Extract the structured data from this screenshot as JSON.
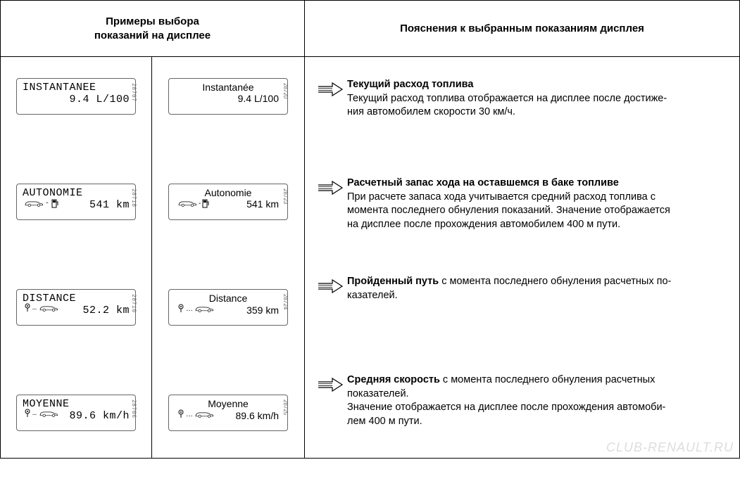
{
  "header": {
    "left": "Примеры выбора\nпоказаний на дисплее",
    "right": "Пояснения к выбранным показаниям дисплея"
  },
  "rows": [
    {
      "lcd": {
        "line1": "INSTANTANEE",
        "line2": "9.4 L/100",
        "ref": "28707",
        "icon": "none"
      },
      "mat": {
        "line1": "Instantanée",
        "line2": "9.4 L/100",
        "ref": "28720",
        "icon": "none"
      },
      "title": "Текущий расход топлива",
      "body": "Текущий расход топлива отображается на дисплее после достиже-\nния автомобилем скорости 30 км/ч."
    },
    {
      "lcd": {
        "line1": "AUTONOMIE",
        "line2": "541 km",
        "ref": "28718",
        "icon": "car-fuel"
      },
      "mat": {
        "line1": "Autonomie",
        "line2": "541 km",
        "ref": "28723",
        "icon": "car-fuel"
      },
      "title": "Расчетный запас хода на оставшемся в баке топливе",
      "body": "При расчете запаса хода учитывается средний расход топлива с\nмомента последнего обнуления показаний. Значение отображается\nна дисплее после прохождения автомобилем 400 м пути."
    },
    {
      "lcd": {
        "line1": "DISTANCE",
        "line2": "52.2 km",
        "ref": "28710",
        "icon": "pin-car"
      },
      "mat": {
        "line1": "Distance",
        "line2": "359 km",
        "ref": "28724",
        "icon": "pin-car"
      },
      "title": "Пройденный путь",
      "body": " с момента последнего обнуления расчетных по-\nказателей."
    },
    {
      "lcd": {
        "line1": "MOYENNE",
        "line2": "89.6 km/h",
        "ref": "28706",
        "icon": "pin-car"
      },
      "mat": {
        "line1": "Moyenne",
        "line2": "89.6 km/h",
        "ref": "28725",
        "icon": "pin-car"
      },
      "title": "Средняя скорость",
      "body": " с момента последнего обнуления расчетных\nпоказателей.\nЗначение отображается на дисплее после прохождения автомоби-\nлем 400 м пути."
    }
  ],
  "watermark": "CLUB-RENAULT.RU",
  "colors": {
    "border": "#000000",
    "text": "#000000",
    "ref": "#666666",
    "watermark": "#dddddd"
  }
}
